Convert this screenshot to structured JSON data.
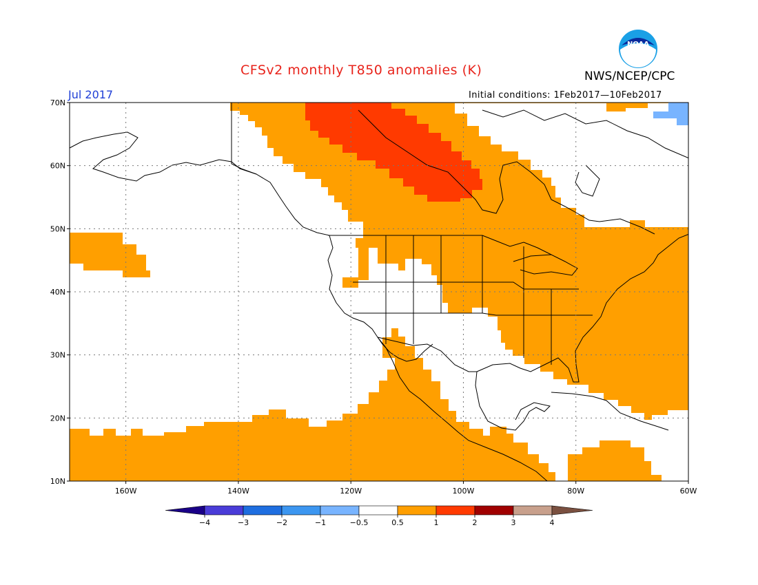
{
  "header": {
    "title": "CFSv2 monthly T850 anomalies (K)",
    "agency": "NWS/NCEP/CPC",
    "logo_text": "NOAA",
    "month": "Jul 2017",
    "initial_conditions": "Initial conditions:  1Feb2017—10Feb2017"
  },
  "map": {
    "extent": {
      "lon": [
        -170,
        -60
      ],
      "lat": [
        10,
        70
      ]
    },
    "lat_ticks": [
      {
        "lat": 70,
        "label": "70N"
      },
      {
        "lat": 60,
        "label": "60N"
      },
      {
        "lat": 50,
        "label": "50N"
      },
      {
        "lat": 40,
        "label": "40N"
      },
      {
        "lat": 30,
        "label": "30N"
      },
      {
        "lat": 20,
        "label": "20N"
      },
      {
        "lat": 10,
        "label": "10N"
      }
    ],
    "lon_ticks": [
      {
        "lon": -160,
        "label": "160W"
      },
      {
        "lon": -140,
        "label": "140W"
      },
      {
        "lon": -120,
        "label": "120W"
      },
      {
        "lon": -100,
        "label": "100W"
      },
      {
        "lon": -80,
        "label": "80W"
      },
      {
        "lon": -60,
        "label": "60W"
      }
    ],
    "colors": {
      "orange": "#ff9f00",
      "red": "#ff3a00",
      "lightblue": "#78b4ff"
    }
  },
  "colorbar": {
    "colors": [
      "#1a0088",
      "#4a3cd8",
      "#1e6ee0",
      "#3c96f0",
      "#78b4ff",
      "#ffffff",
      "#ff9f00",
      "#ff3a00",
      "#a00000",
      "#c8a08c",
      "#7a5040"
    ],
    "labels": [
      "−4",
      "−3",
      "−2",
      "−1",
      "−0.5",
      "0.5",
      "1",
      "2",
      "3",
      "4"
    ]
  }
}
